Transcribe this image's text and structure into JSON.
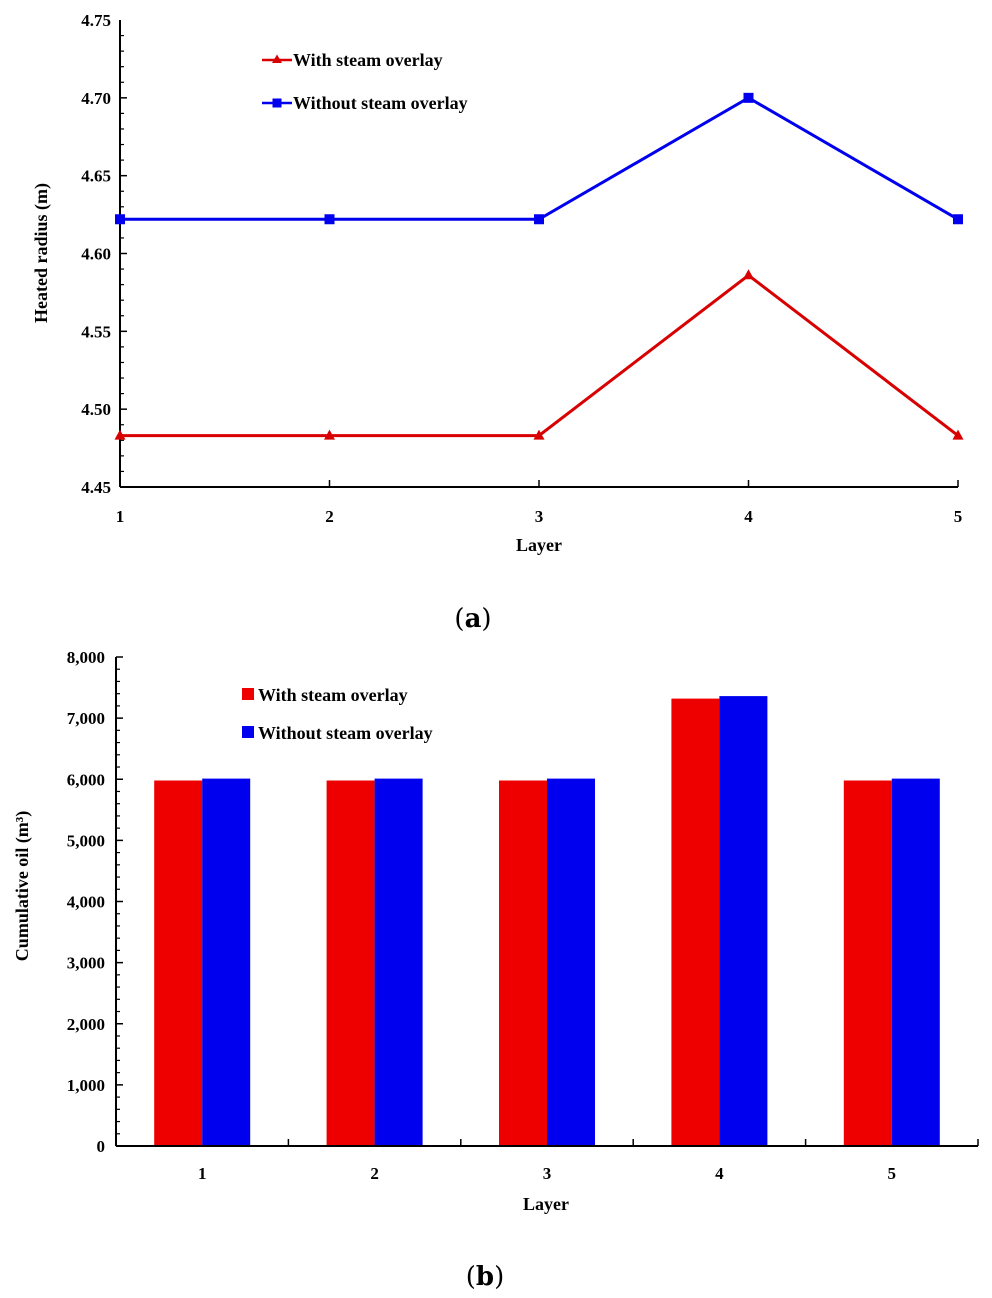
{
  "chart_data": [
    {
      "type": "line",
      "caption_letter": "a",
      "caption_open": "(",
      "caption_close": ")",
      "title": "",
      "xlabel": "Layer",
      "ylabel": "Heated radius (m)",
      "categories": [
        "1",
        "2",
        "3",
        "4",
        "5"
      ],
      "ylim": [
        4.45,
        4.75
      ],
      "yticks": [
        "4.45",
        "4.50",
        "4.55",
        "4.60",
        "4.65",
        "4.70",
        "4.75"
      ],
      "legend_position": "top-left",
      "series": [
        {
          "name": "With steam overlay",
          "color": "#d80000",
          "marker": "triangle",
          "values": [
            4.483,
            4.483,
            4.483,
            4.586,
            4.483
          ]
        },
        {
          "name": "Without steam overlay",
          "color": "#0000ee",
          "marker": "square",
          "values": [
            4.622,
            4.622,
            4.622,
            4.7,
            4.622
          ]
        }
      ]
    },
    {
      "type": "bar",
      "caption_letter": "b",
      "caption_open": "(",
      "caption_close": ")",
      "title": "",
      "xlabel": "Layer",
      "ylabel": "Cumulative oil (m³)",
      "categories": [
        "1",
        "2",
        "3",
        "4",
        "5"
      ],
      "ylim": [
        0,
        8000
      ],
      "yticks": [
        "0",
        "1,000",
        "2,000",
        "3,000",
        "4,000",
        "5,000",
        "6,000",
        "7,000",
        "8,000"
      ],
      "legend_position": "top-left",
      "series": [
        {
          "name": "With steam overlay",
          "color": "#ee0000",
          "values": [
            5980,
            5980,
            5980,
            7320,
            5980
          ]
        },
        {
          "name": "Without steam overlay",
          "color": "#0000ee",
          "values": [
            6010,
            6010,
            6010,
            7360,
            6010
          ]
        }
      ]
    }
  ]
}
